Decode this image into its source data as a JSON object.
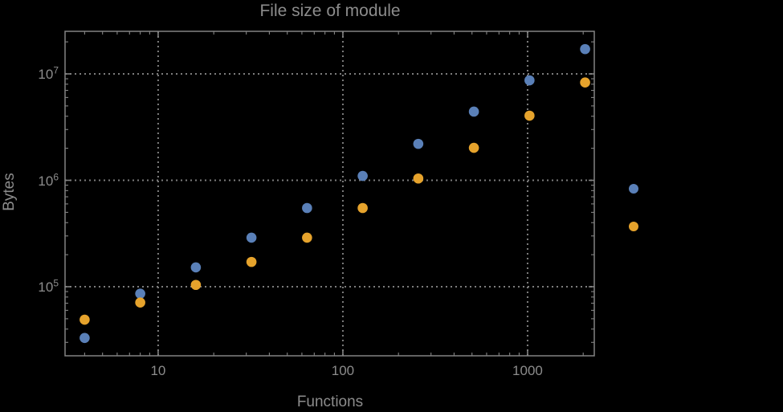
{
  "window": {
    "background": "#000000"
  },
  "chart_data": {
    "type": "scatter",
    "title": "File size of module",
    "xlabel": "Functions",
    "ylabel": "Bytes",
    "x_scale": "log",
    "y_scale": "log",
    "xlim_log10": [
      0.496,
      3.361
    ],
    "ylim_log10": [
      4.351,
      7.4
    ],
    "grid": "major-dotted",
    "x": [
      4,
      8,
      16,
      32,
      64,
      128,
      256,
      512,
      1024,
      2048
    ],
    "series": [
      {
        "name": "blue-series",
        "color": "#5A80B8",
        "values": [
          33000,
          86000,
          152000,
          289000,
          549000,
          1100000,
          2200000,
          4420000,
          8700000,
          17100000
        ]
      },
      {
        "name": "orange-series",
        "color": "#E6A32C",
        "values": [
          49000,
          71000,
          104000,
          171000,
          289000,
          549000,
          1040000,
          2020000,
          4050000,
          8300000
        ]
      }
    ],
    "x_ticks": [
      {
        "label": "10",
        "value": 10
      },
      {
        "label": "100",
        "value": 100
      },
      {
        "label": "1000",
        "value": 1000
      }
    ],
    "y_ticks": [
      {
        "base": "10",
        "exponent": "5",
        "value": 100000
      },
      {
        "base": "10",
        "exponent": "6",
        "value": 1000000
      },
      {
        "base": "10",
        "exponent": "7",
        "value": 10000000
      }
    ],
    "legend": {
      "position": "right-outside",
      "labels_visible": false,
      "markers": [
        {
          "series": "blue-series",
          "color": "#5A80B8"
        },
        {
          "series": "orange-series",
          "color": "#E6A32C"
        }
      ]
    }
  },
  "colors": {
    "text": "#8c8c8c",
    "frame": "#838383",
    "grid": "#7d7d7d",
    "background": "#000000"
  }
}
